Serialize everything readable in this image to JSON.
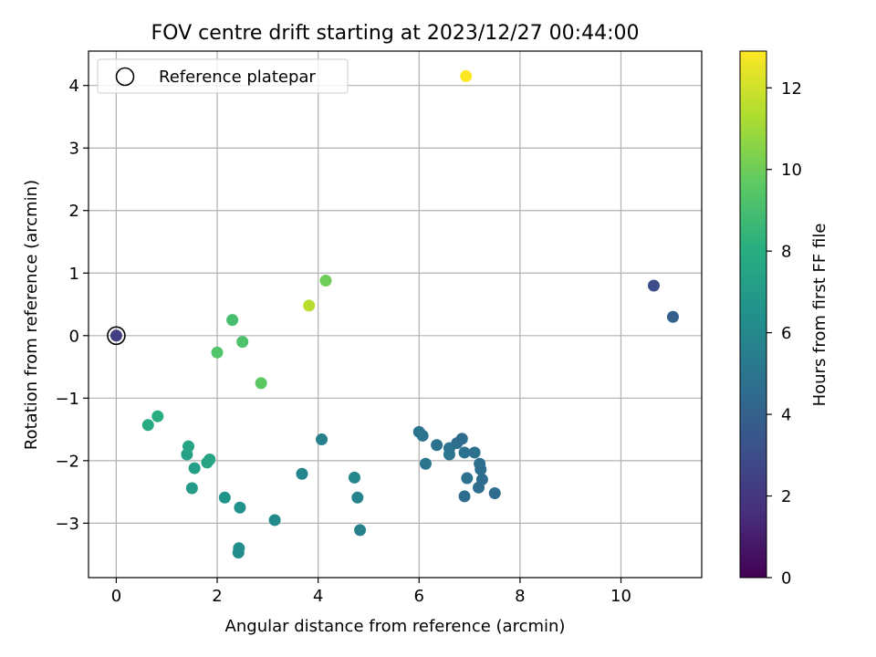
{
  "chart_data": {
    "type": "scatter",
    "title": "FOV centre drift starting at 2023/12/27 00:44:00",
    "xlabel": "Angular distance from reference (arcmin)",
    "ylabel": "Rotation from reference (arcmin)",
    "xlim": [
      -0.55,
      11.6
    ],
    "ylim": [
      -3.87,
      4.55
    ],
    "xticks": [
      0,
      2,
      4,
      6,
      8,
      10
    ],
    "yticks": [
      -3,
      -2,
      -1,
      0,
      1,
      2,
      3,
      4
    ],
    "tick_labels_x": [
      "0",
      "2",
      "4",
      "6",
      "8",
      "10"
    ],
    "tick_labels_y": [
      "−3",
      "−2",
      "−1",
      "0",
      "1",
      "2",
      "3",
      "4"
    ],
    "grid": true,
    "legend": {
      "placement": "top-left",
      "entries": [
        "Reference platepar"
      ]
    },
    "colorbar": {
      "label": "Hours from first FF file",
      "min": 0,
      "max": 12.9,
      "colormap": "viridis",
      "ticks": [
        0,
        2,
        4,
        6,
        8,
        10,
        12
      ],
      "tick_labels": [
        "0",
        "2",
        "4",
        "6",
        "8",
        "10",
        "12"
      ]
    },
    "reference_point": {
      "x": 0,
      "y": 0
    },
    "points": [
      {
        "x": 0.0,
        "y": 0.0,
        "c": 2.3
      },
      {
        "x": 10.65,
        "y": 0.8,
        "c": 3.0
      },
      {
        "x": 11.03,
        "y": 0.3,
        "c": 4.0
      },
      {
        "x": 6.0,
        "y": -1.54,
        "c": 4.9
      },
      {
        "x": 6.07,
        "y": -1.6,
        "c": 4.9
      },
      {
        "x": 6.13,
        "y": -2.05,
        "c": 5.0
      },
      {
        "x": 6.35,
        "y": -1.75,
        "c": 4.8
      },
      {
        "x": 6.6,
        "y": -1.8,
        "c": 4.9
      },
      {
        "x": 6.6,
        "y": -1.9,
        "c": 5.0
      },
      {
        "x": 6.75,
        "y": -1.72,
        "c": 4.7
      },
      {
        "x": 6.85,
        "y": -1.65,
        "c": 4.6
      },
      {
        "x": 6.9,
        "y": -1.87,
        "c": 4.8
      },
      {
        "x": 6.9,
        "y": -2.57,
        "c": 4.6
      },
      {
        "x": 6.95,
        "y": -2.28,
        "c": 4.8
      },
      {
        "x": 7.1,
        "y": -1.87,
        "c": 4.8
      },
      {
        "x": 7.2,
        "y": -2.05,
        "c": 4.7
      },
      {
        "x": 7.22,
        "y": -2.14,
        "c": 4.7
      },
      {
        "x": 7.18,
        "y": -2.43,
        "c": 4.6
      },
      {
        "x": 7.25,
        "y": -2.3,
        "c": 4.6
      },
      {
        "x": 7.5,
        "y": -2.52,
        "c": 4.6
      },
      {
        "x": 4.07,
        "y": -1.66,
        "c": 5.6
      },
      {
        "x": 3.68,
        "y": -2.21,
        "c": 5.8
      },
      {
        "x": 4.72,
        "y": -2.27,
        "c": 5.8
      },
      {
        "x": 4.78,
        "y": -2.59,
        "c": 5.7
      },
      {
        "x": 4.83,
        "y": -3.11,
        "c": 5.6
      },
      {
        "x": 3.14,
        "y": -2.95,
        "c": 6.1
      },
      {
        "x": 2.43,
        "y": -3.4,
        "c": 6.3
      },
      {
        "x": 2.42,
        "y": -3.47,
        "c": 6.3
      },
      {
        "x": 2.45,
        "y": -2.75,
        "c": 6.5
      },
      {
        "x": 2.15,
        "y": -2.59,
        "c": 6.7
      },
      {
        "x": 1.5,
        "y": -2.44,
        "c": 7.0
      },
      {
        "x": 1.55,
        "y": -2.12,
        "c": 7.2
      },
      {
        "x": 1.8,
        "y": -2.03,
        "c": 7.5
      },
      {
        "x": 1.85,
        "y": -1.98,
        "c": 7.5
      },
      {
        "x": 1.4,
        "y": -1.9,
        "c": 7.3
      },
      {
        "x": 1.43,
        "y": -1.77,
        "c": 7.5
      },
      {
        "x": 0.63,
        "y": -1.43,
        "c": 7.8
      },
      {
        "x": 0.82,
        "y": -1.29,
        "c": 8.0
      },
      {
        "x": 2.0,
        "y": -0.27,
        "c": 9.3
      },
      {
        "x": 2.5,
        "y": -0.1,
        "c": 9.2
      },
      {
        "x": 2.3,
        "y": 0.25,
        "c": 9.0
      },
      {
        "x": 2.87,
        "y": -0.76,
        "c": 9.6
      },
      {
        "x": 4.15,
        "y": 0.88,
        "c": 10.0
      },
      {
        "x": 3.82,
        "y": 0.48,
        "c": 11.5
      },
      {
        "x": 6.93,
        "y": 4.15,
        "c": 12.9
      }
    ]
  }
}
